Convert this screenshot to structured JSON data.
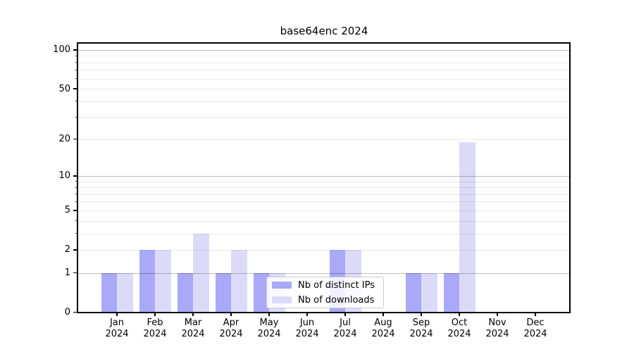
{
  "chart_data": {
    "type": "bar",
    "title": "base64enc 2024",
    "categories": [
      "Jan",
      "Feb",
      "Mar",
      "Apr",
      "May",
      "Jun",
      "Jul",
      "Aug",
      "Sep",
      "Oct",
      "Nov",
      "Dec"
    ],
    "category_year": "2024",
    "series": [
      {
        "name": "Nb of distinct IPs",
        "color": "#a9a9f7",
        "values": [
          1,
          2,
          1,
          1,
          1,
          0,
          2,
          0,
          1,
          1,
          0,
          0
        ]
      },
      {
        "name": "Nb of downloads",
        "color": "#dbdbf9",
        "values": [
          1,
          2,
          3,
          2,
          1,
          0,
          2,
          0,
          1,
          19,
          0,
          0
        ]
      }
    ],
    "xlabel": "",
    "ylabel": "",
    "y_axis": {
      "scale": "log10(1+value)",
      "tick_values": [
        0,
        1,
        2,
        5,
        10,
        20,
        50,
        100
      ],
      "tick_labels": [
        "0",
        "1",
        "2",
        "5",
        "10",
        "20",
        "50",
        "100"
      ],
      "major_grid_values": [
        1,
        10,
        100
      ],
      "minor_grid_values": [
        2,
        3,
        4,
        5,
        6,
        7,
        8,
        9,
        20,
        30,
        40,
        50,
        60,
        70,
        80,
        90
      ],
      "ylim_top_value": 113
    },
    "grid": "horizontal",
    "legend": {
      "position": "inside-bottom-center",
      "entries": [
        "Nb of distinct IPs",
        "Nb of downloads"
      ]
    },
    "colors": {
      "bar_distinct_ips": "#a9a9f7",
      "bar_downloads": "#dbdbf9",
      "major_grid": "#bdbdbd",
      "minor_grid": "#e8e8e8",
      "axis": "#000000",
      "background": "#ffffff",
      "legend_border": "#cccccc"
    }
  }
}
